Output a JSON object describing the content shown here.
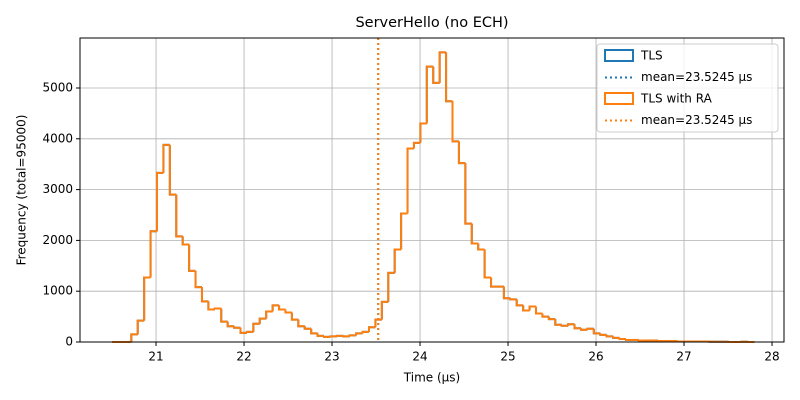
{
  "chart_data": {
    "type": "histogram",
    "title": "ServerHello (no ECH)",
    "x_label": "Time (µs)",
    "y_label": "Frequency (total=95000)",
    "bins": [
      20.5,
      20.573,
      20.646,
      20.719,
      20.792,
      20.865,
      20.938,
      21.011,
      21.084,
      21.157,
      21.23,
      21.303,
      21.376,
      21.449,
      21.522,
      21.595,
      21.668,
      21.741,
      21.814,
      21.887,
      21.96,
      22.033,
      22.106,
      22.179,
      22.252,
      22.325,
      22.398,
      22.471,
      22.544,
      22.617,
      22.69,
      22.763,
      22.836,
      22.909,
      22.982,
      23.055,
      23.128,
      23.201,
      23.274,
      23.347,
      23.42,
      23.493,
      23.566,
      23.639,
      23.712,
      23.785,
      23.858,
      23.931,
      24.004,
      24.077,
      24.15,
      24.223,
      24.296,
      24.369,
      24.442,
      24.515,
      24.588,
      24.661,
      24.734,
      24.807,
      24.88,
      24.953,
      25.026,
      25.099,
      25.172,
      25.245,
      25.318,
      25.391,
      25.464,
      25.537,
      25.61,
      25.683,
      25.756,
      25.829,
      25.902,
      25.975,
      26.048,
      26.121,
      26.194,
      26.267,
      26.34,
      26.413,
      26.486,
      26.559,
      26.632,
      26.705,
      26.778,
      26.851,
      26.924,
      26.997,
      27.07,
      27.143,
      27.216,
      27.289,
      27.362,
      27.435,
      27.508,
      27.581,
      27.654,
      27.727,
      27.8
    ],
    "series": [
      {
        "name": "TLS",
        "color": "#1f77b4",
        "mean": {
          "value": 23.5245,
          "label": "mean=23.5245 µs"
        },
        "values": [
          0,
          0,
          0,
          150,
          420,
          1270,
          2180,
          3330,
          3880,
          2900,
          2080,
          1920,
          1400,
          1080,
          800,
          640,
          660,
          400,
          310,
          280,
          180,
          200,
          360,
          460,
          600,
          720,
          640,
          580,
          440,
          310,
          260,
          170,
          120,
          100,
          110,
          120,
          110,
          130,
          170,
          200,
          290,
          440,
          790,
          1360,
          1820,
          2530,
          3810,
          3920,
          4300,
          5420,
          5100,
          5700,
          4740,
          3950,
          3520,
          2330,
          1940,
          1820,
          1270,
          1090,
          1090,
          860,
          840,
          720,
          620,
          700,
          560,
          500,
          450,
          340,
          320,
          350,
          270,
          240,
          260,
          170,
          140,
          110,
          80,
          60,
          40,
          40,
          30,
          30,
          30,
          20,
          20,
          20,
          10,
          10,
          10,
          10,
          10,
          5,
          5,
          5,
          0,
          0,
          5,
          0
        ]
      },
      {
        "name": "TLS with RA",
        "color": "#ff7f0e",
        "mean": {
          "value": 23.5245,
          "label": "mean=23.5245 µs"
        },
        "values": [
          0,
          0,
          0,
          150,
          420,
          1270,
          2180,
          3330,
          3880,
          2900,
          2080,
          1920,
          1400,
          1080,
          800,
          640,
          660,
          400,
          310,
          280,
          180,
          200,
          360,
          460,
          600,
          720,
          640,
          580,
          440,
          310,
          260,
          170,
          120,
          100,
          110,
          120,
          110,
          130,
          170,
          200,
          290,
          440,
          790,
          1360,
          1820,
          2530,
          3810,
          3920,
          4300,
          5420,
          5100,
          5700,
          4740,
          3950,
          3520,
          2330,
          1940,
          1820,
          1270,
          1090,
          1090,
          860,
          840,
          720,
          620,
          700,
          560,
          500,
          450,
          340,
          320,
          350,
          270,
          240,
          260,
          170,
          140,
          110,
          80,
          60,
          40,
          40,
          30,
          30,
          30,
          20,
          20,
          20,
          10,
          10,
          10,
          10,
          10,
          5,
          5,
          5,
          0,
          0,
          5,
          0
        ]
      }
    ],
    "xlim": [
      20.136,
      28.136
    ],
    "ylim": [
      0,
      5984
    ],
    "xticks": [
      21,
      22,
      23,
      24,
      25,
      26,
      27,
      28
    ],
    "yticks": [
      0,
      1000,
      2000,
      3000,
      4000,
      5000
    ],
    "grid": true,
    "legend": "upper right"
  }
}
